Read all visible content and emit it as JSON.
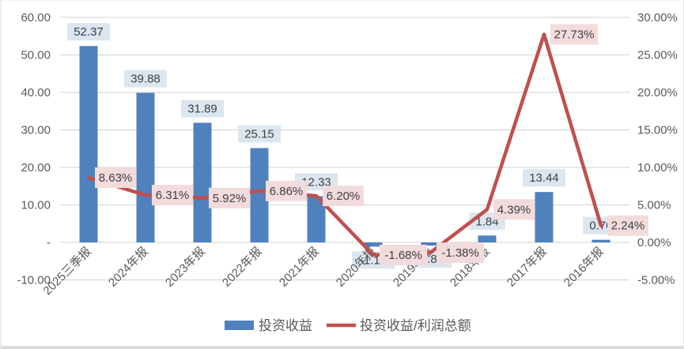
{
  "chart_data": {
    "type": "bar",
    "subtype": "bar-line-combo",
    "categories": [
      "2025三季报",
      "2024年报",
      "2023年报",
      "2022年报",
      "2021年报",
      "2020年报",
      "2019年报",
      "2018年报",
      "2017年报",
      "2016年报"
    ],
    "series": [
      {
        "name": "投资收益",
        "type": "bar",
        "axis": "left",
        "color": "#4F81BD",
        "label_bg": "#DCE6F1",
        "values": [
          52.37,
          39.88,
          31.89,
          25.15,
          12.33,
          -1.12,
          -0.85,
          1.84,
          13.44,
          0.7
        ],
        "labels": [
          "52.37",
          "39.88",
          "31.89",
          "25.15",
          "12.33",
          "-1.12",
          "-0.85",
          "1.84",
          "13.44",
          "0.70"
        ]
      },
      {
        "name": "投资收益/利润总额",
        "type": "line",
        "axis": "right",
        "color": "#C0504D",
        "label_bg": "#F2DCDB",
        "values": [
          8.63,
          6.31,
          5.92,
          6.86,
          6.2,
          -1.68,
          -1.38,
          4.39,
          27.73,
          2.24
        ],
        "labels": [
          "8.63%",
          "6.31%",
          "5.92%",
          "6.86%",
          "6.20%",
          "-1.68%",
          "-1.38%",
          "4.39%",
          "27.73%",
          "2.24%"
        ]
      }
    ],
    "left_axis": {
      "ticks": [
        "60.00",
        "50.00",
        "40.00",
        "30.00",
        "20.00",
        "10.00",
        "-",
        "-10.00"
      ],
      "min": -10,
      "max": 60
    },
    "right_axis": {
      "ticks": [
        "30.00%",
        "25.00%",
        "20.00%",
        "15.00%",
        "10.00%",
        "5.00%",
        "0.00%",
        "-5.00%"
      ],
      "min": -5,
      "max": 30
    },
    "legend": [
      {
        "label": "投资收益",
        "marker": "bar",
        "color": "#4F81BD"
      },
      {
        "label": "投资收益/利润总额",
        "marker": "line",
        "color": "#C0504D"
      }
    ],
    "legend_position": "bottom",
    "grid": true,
    "colors": {
      "gridline": "#D9D9D9",
      "axis_text": "#595959",
      "label_text": "#404040",
      "bar_label_bg": "#DCE6F1",
      "line_label_bg": "#F2DCDB"
    },
    "title": "",
    "xlabel": "",
    "ylabel": ""
  }
}
